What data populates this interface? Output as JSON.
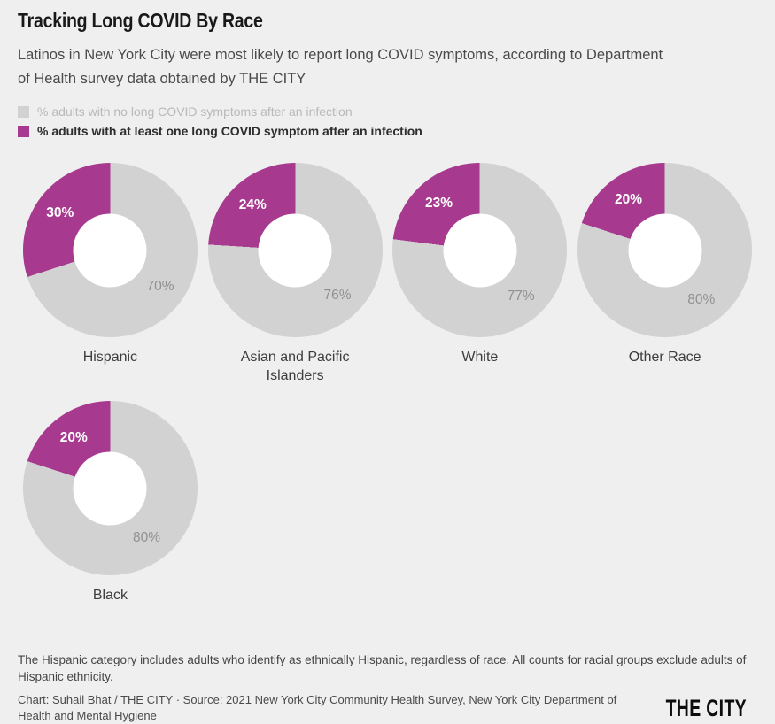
{
  "header": {
    "title": "Tracking Long COVID By Race",
    "subtitle": "Latinos in New York City were most likely to report long COVID symptoms, according to Department of Health survey data obtained by THE CITY"
  },
  "legend": [
    {
      "label": "% adults with no long COVID symptoms after an infection",
      "color": "#d2d2d2",
      "emphasis": false
    },
    {
      "label": "% adults with at least one long COVID symptom after an infection",
      "color": "#a73a8f",
      "emphasis": true
    }
  ],
  "chart_data": {
    "type": "pie",
    "variant": "donut-small-multiples",
    "categories": [
      "Hispanic",
      "Asian and Pacific Islanders",
      "White",
      "Other Race",
      "Black"
    ],
    "series": [
      {
        "name": "% adults with at least one long COVID symptom after an infection",
        "values": [
          30,
          24,
          23,
          20,
          20
        ],
        "color": "#a73a8f"
      },
      {
        "name": "% adults with no long COVID symptoms after an infection",
        "values": [
          70,
          76,
          77,
          80,
          80
        ],
        "color": "#d2d2d2"
      }
    ],
    "value_format": "percent",
    "legend_position": "top",
    "title": "Tracking Long COVID By Race"
  },
  "footer": {
    "note": "The Hispanic category includes adults who identify as ethnically Hispanic, regardless of race. All counts for racial groups exclude adults of Hispanic ethnicity.",
    "credit": "Chart: Suhail Bhat / THE CITY · Source: 2021 New York City Community Health Survey, New York City Department of Health and Mental Hygiene",
    "logo": "THE CITY"
  },
  "colors": {
    "background": "#efefef",
    "symptom": "#a73a8f",
    "no_symptom": "#d2d2d2",
    "hole": "#ffffff",
    "gray_label": "#909090"
  }
}
